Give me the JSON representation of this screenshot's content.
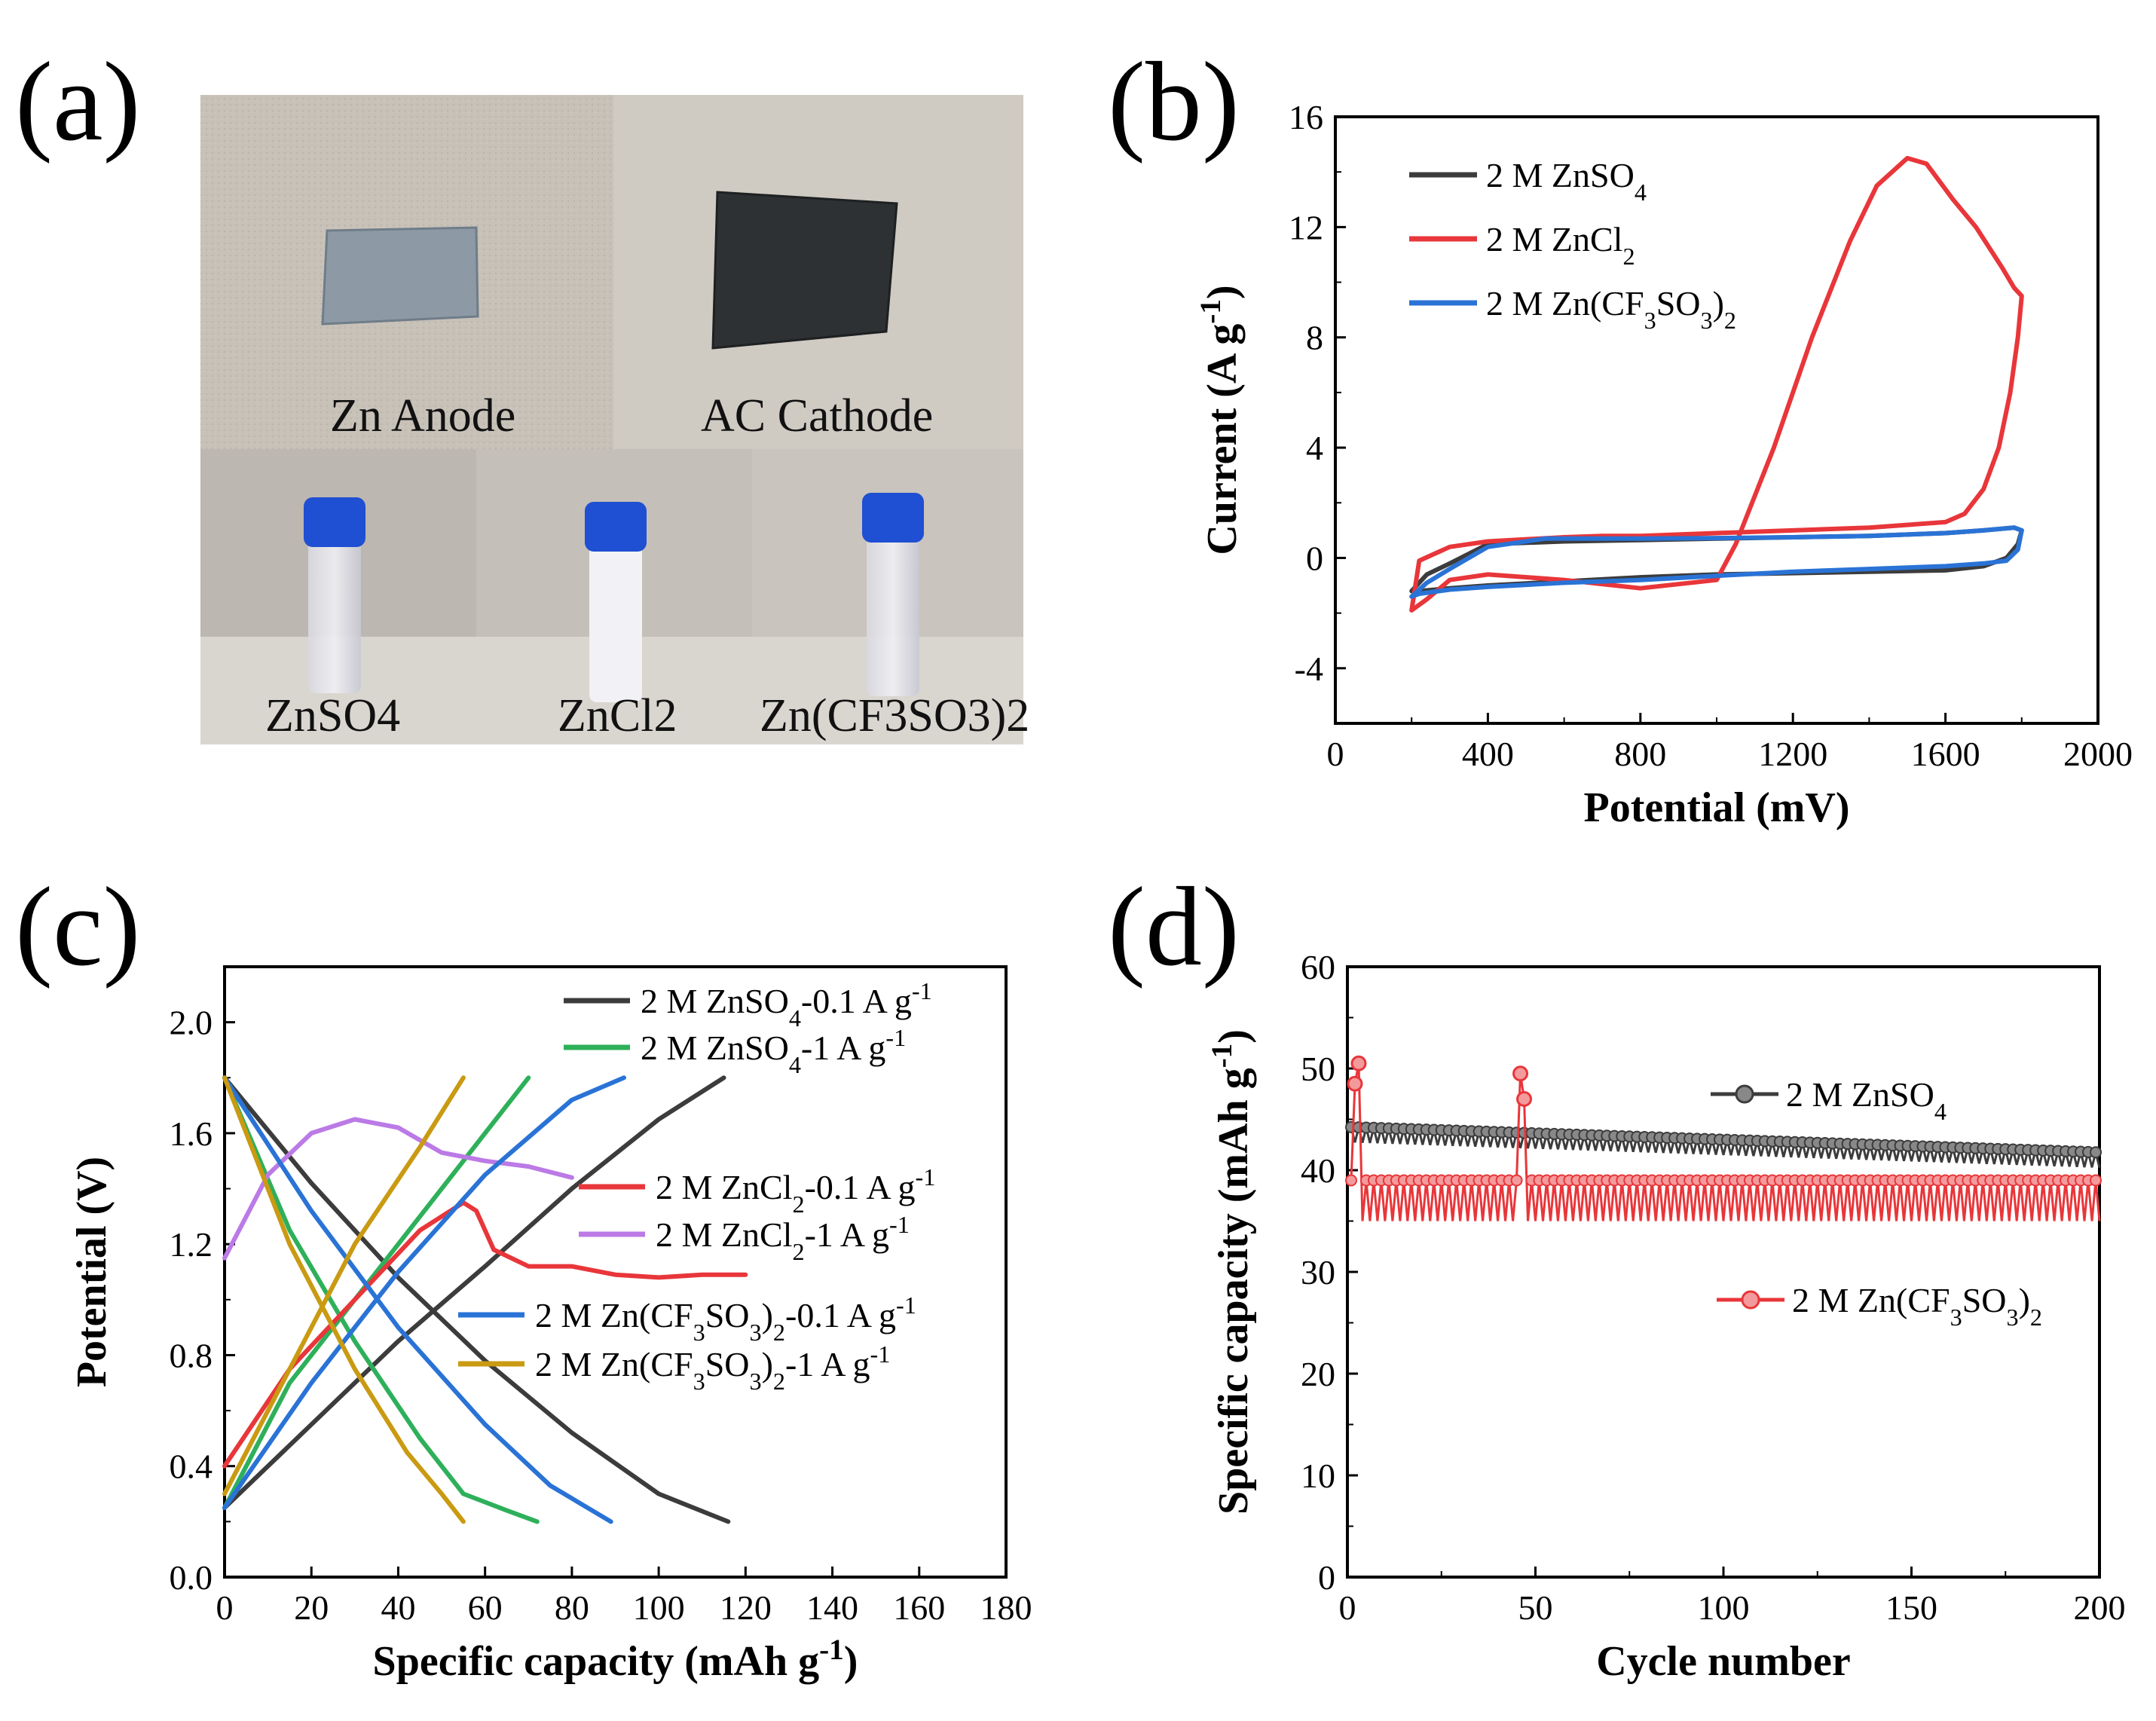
{
  "panels": {
    "a": "(a)",
    "b": "(b)",
    "c": "(c)",
    "d": "(d)"
  },
  "photo": {
    "top": [
      "Zn Anode",
      "AC Cathode"
    ],
    "bottom": [
      "ZnSO4",
      "ZnCl2",
      "Zn(CF3SO3)2"
    ]
  },
  "colors": {
    "black": "#3c3c3c",
    "red": "#e8363a",
    "blue": "#2a73d6",
    "green": "#2eb05a",
    "purple": "#bb7ae6",
    "gold": "#c99a12",
    "blue_cap": "#1f4fd2"
  },
  "chart_data": [
    {
      "id": "b",
      "type": "line",
      "title": "",
      "xlabel": "Potential (mV)",
      "ylabel": "Current (A g-1)",
      "xlim": [
        0,
        2000
      ],
      "ylim": [
        -6,
        16
      ],
      "xticks": [
        0,
        400,
        800,
        1200,
        1600,
        2000
      ],
      "yticks": [
        -4,
        0,
        4,
        8,
        12,
        16
      ],
      "legend": "top-left",
      "series": [
        {
          "name": "2 M ZnSO4",
          "color": "#3c3c3c",
          "x": [
            200,
            240,
            300,
            400,
            600,
            800,
            1000,
            1200,
            1400,
            1600,
            1700,
            1780,
            1800,
            1790,
            1760,
            1700,
            1600,
            1400,
            1200,
            1000,
            800,
            600,
            400,
            300,
            220,
            200
          ],
          "y": [
            -1.2,
            -0.6,
            -0.2,
            0.5,
            0.6,
            0.65,
            0.7,
            0.75,
            0.8,
            0.9,
            1.0,
            1.1,
            1.0,
            0.5,
            0.0,
            -0.3,
            -0.45,
            -0.5,
            -0.55,
            -0.6,
            -0.7,
            -0.85,
            -1.0,
            -1.1,
            -1.2,
            -1.2
          ]
        },
        {
          "name": "2 M ZnCl2",
          "color": "#e8363a",
          "x": [
            200,
            240,
            300,
            400,
            600,
            800,
            1000,
            1050,
            1150,
            1250,
            1350,
            1420,
            1500,
            1550,
            1620,
            1680,
            1750,
            1780,
            1800,
            1790,
            1770,
            1740,
            1700,
            1650,
            1600,
            1400,
            1200,
            1000,
            800,
            700,
            600,
            400,
            300,
            220,
            200
          ],
          "y": [
            -1.9,
            -1.5,
            -0.8,
            -0.6,
            -0.8,
            -1.1,
            -0.8,
            0.5,
            4.0,
            8.0,
            11.5,
            13.5,
            14.5,
            14.3,
            13.0,
            12.0,
            10.5,
            9.8,
            9.5,
            8.0,
            6.0,
            4.0,
            2.5,
            1.6,
            1.3,
            1.1,
            1.0,
            0.9,
            0.8,
            0.8,
            0.75,
            0.6,
            0.4,
            -0.1,
            -1.9
          ]
        },
        {
          "name": "2 M Zn(CF3SO3)2",
          "color": "#2a73d6",
          "x": [
            200,
            240,
            300,
            400,
            550,
            800,
            1000,
            1200,
            1400,
            1600,
            1700,
            1780,
            1800,
            1790,
            1760,
            1700,
            1600,
            1400,
            1200,
            1000,
            800,
            600,
            400,
            300,
            220,
            200
          ],
          "y": [
            -1.4,
            -0.9,
            -0.4,
            0.4,
            0.7,
            0.7,
            0.72,
            0.75,
            0.8,
            0.9,
            1.0,
            1.1,
            1.0,
            0.3,
            -0.1,
            -0.2,
            -0.3,
            -0.4,
            -0.5,
            -0.65,
            -0.8,
            -0.9,
            -1.05,
            -1.15,
            -1.3,
            -1.4
          ]
        }
      ]
    },
    {
      "id": "c",
      "type": "line",
      "title": "",
      "xlabel": "Specific capacity (mAh g-1)",
      "ylabel": "Potential (V)",
      "xlim": [
        0,
        180
      ],
      "ylim": [
        0.0,
        2.2
      ],
      "xticks": [
        0,
        20,
        40,
        60,
        80,
        100,
        120,
        140,
        160,
        180
      ],
      "yticks": [
        0.0,
        0.4,
        0.8,
        1.2,
        1.6,
        2.0
      ],
      "legend": "top-right",
      "series": [
        {
          "name": "2 M ZnSO4-0.1 A g-1",
          "color": "#3c3c3c",
          "charge": {
            "x": [
              0,
              20,
              40,
              60,
              80,
              100,
              115
            ],
            "y": [
              0.25,
              0.55,
              0.85,
              1.12,
              1.4,
              1.65,
              1.8
            ]
          },
          "discharge": {
            "x": [
              0,
              20,
              40,
              60,
              80,
              100,
              116
            ],
            "y": [
              1.8,
              1.42,
              1.08,
              0.78,
              0.52,
              0.3,
              0.2
            ]
          }
        },
        {
          "name": "2 M ZnSO4-1 A g-1",
          "color": "#2eb05a",
          "charge": {
            "x": [
              0,
              15,
              30,
              45,
              60,
              70
            ],
            "y": [
              0.25,
              0.7,
              1.0,
              1.3,
              1.6,
              1.8
            ]
          },
          "discharge": {
            "x": [
              0,
              15,
              30,
              45,
              55,
              65,
              72
            ],
            "y": [
              1.8,
              1.25,
              0.85,
              0.5,
              0.3,
              0.24,
              0.2
            ]
          }
        },
        {
          "name": "2 M ZnCl2-0.1 A g-1",
          "color": "#e8363a",
          "charge": {
            "x": [
              0,
              15,
              30,
              45,
              55,
              58,
              62,
              70,
              80,
              90,
              100,
              110,
              120
            ],
            "y": [
              0.4,
              0.75,
              1.0,
              1.25,
              1.35,
              1.32,
              1.18,
              1.12,
              1.12,
              1.09,
              1.08,
              1.09,
              1.09
            ]
          },
          "discharge": {
            "x": [],
            "y": []
          }
        },
        {
          "name": "2 M ZnCl2-1 A g-1",
          "color": "#bb7ae6",
          "charge": {
            "x": [
              0,
              10,
              20,
              30,
              40,
              50,
              60,
              70,
              80
            ],
            "y": [
              1.15,
              1.45,
              1.6,
              1.65,
              1.62,
              1.53,
              1.5,
              1.48,
              1.44
            ]
          },
          "discharge": {
            "x": [],
            "y": []
          }
        },
        {
          "name": "2 M Zn(CF3SO3)2-0.1 A g-1",
          "color": "#2a73d6",
          "charge": {
            "x": [
              0,
              20,
              40,
              60,
              80,
              92
            ],
            "y": [
              0.25,
              0.7,
              1.1,
              1.45,
              1.72,
              1.8
            ]
          },
          "discharge": {
            "x": [
              0,
              20,
              40,
              60,
              75,
              89
            ],
            "y": [
              1.8,
              1.32,
              0.9,
              0.55,
              0.33,
              0.2
            ]
          }
        },
        {
          "name": "2 M Zn(CF3SO3)2-1 A g-1",
          "color": "#c99a12",
          "charge": {
            "x": [
              0,
              15,
              30,
              45,
              55
            ],
            "y": [
              0.3,
              0.75,
              1.2,
              1.55,
              1.8
            ]
          },
          "discharge": {
            "x": [
              0,
              15,
              30,
              42,
              50,
              55
            ],
            "y": [
              1.8,
              1.2,
              0.75,
              0.45,
              0.3,
              0.2
            ]
          }
        }
      ]
    },
    {
      "id": "d",
      "type": "scatter",
      "title": "",
      "xlabel": "Cycle number",
      "ylabel": "Specific capacity (mAh g-1)",
      "xlim": [
        0,
        200
      ],
      "ylim": [
        0,
        60
      ],
      "xticks": [
        0,
        50,
        100,
        150,
        200
      ],
      "yticks": [
        0,
        10,
        20,
        30,
        40,
        50,
        60
      ],
      "legend": "right",
      "series": [
        {
          "name": "2 M ZnSO4",
          "color": "#3c3c3c",
          "start": 43.5,
          "end": 41.0,
          "band": 2.5,
          "count": 200
        },
        {
          "name": "2 M Zn(CF3SO3)2",
          "color": "#e8363a",
          "high": 39.0,
          "low": 35.0,
          "spikes": [
            [
              2,
              48.5
            ],
            [
              3,
              50.5
            ],
            [
              46,
              49.5
            ],
            [
              47,
              47.0
            ]
          ],
          "count": 200
        }
      ]
    }
  ]
}
